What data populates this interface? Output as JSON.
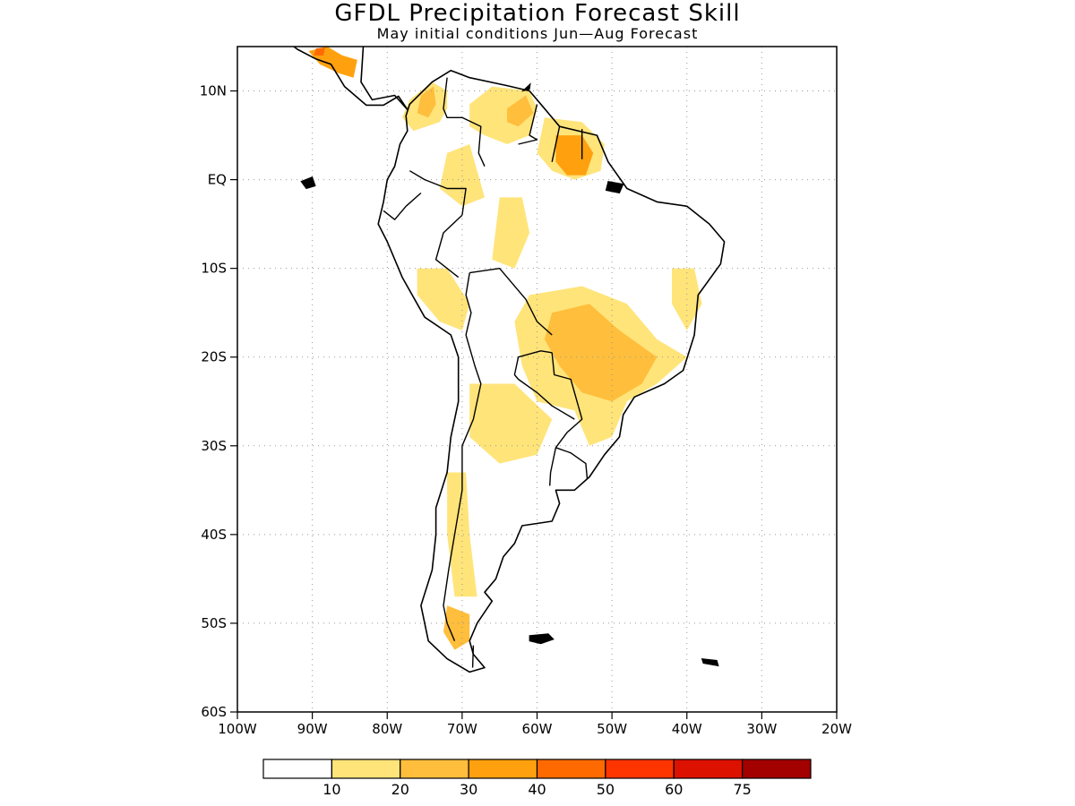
{
  "title": "GFDL Precipitation Forecast Skill",
  "subtitle": "May initial conditions  Jun—Aug Forecast",
  "map": {
    "lon_range": [
      -100,
      -20
    ],
    "lat_range": [
      -60,
      15
    ],
    "lat_ticks": [
      {
        "value": 10,
        "label": "10N"
      },
      {
        "value": 0,
        "label": "EQ"
      },
      {
        "value": -10,
        "label": "10S"
      },
      {
        "value": -20,
        "label": "20S"
      },
      {
        "value": -30,
        "label": "30S"
      },
      {
        "value": -40,
        "label": "40S"
      },
      {
        "value": -50,
        "label": "50S"
      },
      {
        "value": -60,
        "label": "60S"
      }
    ],
    "lon_ticks": [
      {
        "value": -100,
        "label": "100W"
      },
      {
        "value": -90,
        "label": "90W"
      },
      {
        "value": -80,
        "label": "80W"
      },
      {
        "value": -70,
        "label": "70W"
      },
      {
        "value": -60,
        "label": "60W"
      },
      {
        "value": -50,
        "label": "50W"
      },
      {
        "value": -40,
        "label": "40W"
      },
      {
        "value": -30,
        "label": "30W"
      },
      {
        "value": -20,
        "label": "20W"
      }
    ],
    "grid": "dotted"
  },
  "colorbar": {
    "colors": [
      "#ffffff",
      "#ffe47a",
      "#ffbe3c",
      "#ffa10e",
      "#ff6a00",
      "#ff3500",
      "#dc1100",
      "#a30000"
    ],
    "labels": [
      "10",
      "20",
      "30",
      "40",
      "50",
      "60",
      "75"
    ]
  },
  "skill_regions": [
    {
      "name": "central-america",
      "level": 3,
      "lonlat": [
        [
          -90.5,
          14.5
        ],
        [
          -88,
          15
        ],
        [
          -86,
          14
        ],
        [
          -84,
          13.5
        ],
        [
          -84.5,
          11.5
        ],
        [
          -86.5,
          12
        ],
        [
          -89,
          13
        ]
      ]
    },
    {
      "name": "central-america-core",
      "level": 4,
      "lonlat": [
        [
          -89.5,
          14.8
        ],
        [
          -88.3,
          14.9
        ],
        [
          -88.5,
          14
        ],
        [
          -89.8,
          14
        ]
      ]
    },
    {
      "name": "colombia-north",
      "level": 1,
      "lonlat": [
        [
          -77,
          9
        ],
        [
          -74,
          11
        ],
        [
          -72,
          10
        ],
        [
          -72,
          8
        ],
        [
          -73,
          6.5
        ],
        [
          -76.5,
          5.5
        ],
        [
          -78,
          7
        ]
      ]
    },
    {
      "name": "colombia-north-core",
      "level": 2,
      "lonlat": [
        [
          -75.5,
          9.5
        ],
        [
          -73.8,
          10.5
        ],
        [
          -73.5,
          8.5
        ],
        [
          -74.5,
          7
        ],
        [
          -76,
          7.5
        ]
      ]
    },
    {
      "name": "venezuela",
      "level": 1,
      "lonlat": [
        [
          -69,
          8.5
        ],
        [
          -66,
          10.5
        ],
        [
          -61,
          10
        ],
        [
          -60,
          8
        ],
        [
          -61,
          5
        ],
        [
          -64,
          4
        ],
        [
          -67,
          5
        ],
        [
          -69,
          6
        ]
      ]
    },
    {
      "name": "venezuela-core",
      "level": 2,
      "lonlat": [
        [
          -64,
          8
        ],
        [
          -61.5,
          9.5
        ],
        [
          -60.5,
          7.5
        ],
        [
          -62.5,
          6
        ],
        [
          -64,
          6.5
        ]
      ]
    },
    {
      "name": "guianas",
      "level": 1,
      "lonlat": [
        [
          -59,
          7
        ],
        [
          -54,
          6.5
        ],
        [
          -51,
          4
        ],
        [
          -51.5,
          1
        ],
        [
          -55,
          0
        ],
        [
          -58,
          1
        ],
        [
          -60,
          3
        ]
      ]
    },
    {
      "name": "guianas-core",
      "level": 3,
      "lonlat": [
        [
          -57.5,
          5
        ],
        [
          -54,
          5
        ],
        [
          -52.5,
          3
        ],
        [
          -53.5,
          0.5
        ],
        [
          -56,
          0.5
        ],
        [
          -57.5,
          2
        ]
      ]
    },
    {
      "name": "western-amazon",
      "level": 1,
      "lonlat": [
        [
          -72,
          3
        ],
        [
          -69,
          4
        ],
        [
          -68,
          1
        ],
        [
          -67,
          -2
        ],
        [
          -70,
          -3
        ],
        [
          -73,
          -1
        ]
      ]
    },
    {
      "name": "central-amazon",
      "level": 1,
      "lonlat": [
        [
          -65,
          -2
        ],
        [
          -62,
          -2
        ],
        [
          -61,
          -6
        ],
        [
          -63,
          -10
        ],
        [
          -66,
          -9
        ]
      ]
    },
    {
      "name": "peru-bolivia",
      "level": 1,
      "lonlat": [
        [
          -76,
          -10
        ],
        [
          -72,
          -10
        ],
        [
          -69,
          -14
        ],
        [
          -70,
          -17
        ],
        [
          -73,
          -16
        ],
        [
          -76,
          -13
        ]
      ]
    },
    {
      "name": "central-brazil",
      "level": 1,
      "lonlat": [
        [
          -61,
          -13
        ],
        [
          -54,
          -12
        ],
        [
          -48,
          -14
        ],
        [
          -44,
          -18
        ],
        [
          -40,
          -20
        ],
        [
          -44,
          -23
        ],
        [
          -48,
          -25
        ],
        [
          -50,
          -29
        ],
        [
          -53,
          -30
        ],
        [
          -55,
          -26
        ],
        [
          -60,
          -25
        ],
        [
          -62,
          -21
        ],
        [
          -63,
          -16
        ]
      ]
    },
    {
      "name": "central-brazil-core",
      "level": 2,
      "lonlat": [
        [
          -58,
          -15
        ],
        [
          -53,
          -14
        ],
        [
          -49,
          -17
        ],
        [
          -44,
          -20
        ],
        [
          -46,
          -23
        ],
        [
          -50,
          -25
        ],
        [
          -54,
          -24
        ],
        [
          -57,
          -21
        ],
        [
          -59,
          -18
        ]
      ]
    },
    {
      "name": "chaco",
      "level": 1,
      "lonlat": [
        [
          -69,
          -23
        ],
        [
          -63,
          -23
        ],
        [
          -58,
          -27
        ],
        [
          -60,
          -31
        ],
        [
          -65,
          -32
        ],
        [
          -69,
          -29
        ]
      ]
    },
    {
      "name": "east-coast",
      "level": 1,
      "lonlat": [
        [
          -42,
          -10
        ],
        [
          -39,
          -10
        ],
        [
          -38,
          -14
        ],
        [
          -40,
          -17
        ],
        [
          -42,
          -14
        ]
      ]
    },
    {
      "name": "chile-andes",
      "level": 1,
      "lonlat": [
        [
          -72,
          -33
        ],
        [
          -69.5,
          -33
        ],
        [
          -69,
          -40
        ],
        [
          -68,
          -47
        ],
        [
          -71,
          -47
        ],
        [
          -72,
          -40
        ]
      ]
    },
    {
      "name": "patagonia",
      "level": 2,
      "lonlat": [
        [
          -72,
          -48
        ],
        [
          -69,
          -49
        ],
        [
          -69,
          -52
        ],
        [
          -71,
          -53
        ],
        [
          -72.5,
          -51
        ]
      ]
    }
  ],
  "land": [
    {
      "name": "south-america",
      "lonlat": [
        [
          -77,
          8.5
        ],
        [
          -74,
          11
        ],
        [
          -71.5,
          12.3
        ],
        [
          -69,
          11.5
        ],
        [
          -64,
          10.6
        ],
        [
          -61,
          10
        ],
        [
          -59,
          8
        ],
        [
          -57,
          6
        ],
        [
          -52,
          5
        ],
        [
          -50.5,
          2
        ],
        [
          -48,
          -1
        ],
        [
          -44,
          -2.5
        ],
        [
          -40,
          -3
        ],
        [
          -37,
          -5
        ],
        [
          -35,
          -7
        ],
        [
          -35.5,
          -9.5
        ],
        [
          -38.5,
          -13
        ],
        [
          -39,
          -17.5
        ],
        [
          -40.5,
          -21.5
        ],
        [
          -43,
          -23
        ],
        [
          -47,
          -24.5
        ],
        [
          -48.5,
          -26.5
        ],
        [
          -49,
          -29
        ],
        [
          -51,
          -31
        ],
        [
          -53,
          -33.5
        ],
        [
          -55,
          -35
        ],
        [
          -57.5,
          -35
        ],
        [
          -57,
          -36.5
        ],
        [
          -58,
          -38.5
        ],
        [
          -62,
          -39
        ],
        [
          -63,
          -41
        ],
        [
          -64.5,
          -42.5
        ],
        [
          -65.5,
          -45
        ],
        [
          -67,
          -46.5
        ],
        [
          -66,
          -47.5
        ],
        [
          -68,
          -50
        ],
        [
          -69,
          -52
        ],
        [
          -68.5,
          -53.5
        ],
        [
          -67,
          -55
        ],
        [
          -69,
          -55.5
        ],
        [
          -72,
          -54
        ],
        [
          -74.5,
          -52
        ],
        [
          -75.5,
          -48
        ],
        [
          -74,
          -44
        ],
        [
          -73.5,
          -40
        ],
        [
          -73.5,
          -37
        ],
        [
          -72,
          -33
        ],
        [
          -71.5,
          -29
        ],
        [
          -70.5,
          -25
        ],
        [
          -70.5,
          -20
        ],
        [
          -71.5,
          -17.5
        ],
        [
          -75,
          -15.5
        ],
        [
          -78,
          -11
        ],
        [
          -80,
          -7
        ],
        [
          -81.2,
          -5
        ],
        [
          -80.5,
          -2.5
        ],
        [
          -80,
          0
        ],
        [
          -79,
          1.5
        ],
        [
          -78.3,
          4
        ],
        [
          -77.3,
          5.5
        ],
        [
          -77.5,
          7.2
        ]
      ]
    },
    {
      "name": "central-america",
      "lonlat": [
        [
          -77.3,
          7.9
        ],
        [
          -78.5,
          9.4
        ],
        [
          -80.5,
          8.4
        ],
        [
          -82.8,
          8.4
        ],
        [
          -85.7,
          10.5
        ],
        [
          -87.5,
          13
        ],
        [
          -89.5,
          13.6
        ],
        [
          -92,
          14.7
        ],
        [
          -94,
          16
        ],
        [
          -97,
          16.5
        ],
        [
          -97,
          17.8
        ],
        [
          -92,
          18.6
        ],
        [
          -90.5,
          21
        ],
        [
          -87.3,
          21.5
        ],
        [
          -87.8,
          18.5
        ],
        [
          -88.5,
          16
        ],
        [
          -86,
          15.8
        ],
        [
          -83.2,
          15
        ],
        [
          -83.5,
          11
        ],
        [
          -82,
          9
        ],
        [
          -79,
          9.5
        ]
      ]
    }
  ],
  "borders": [
    {
      "name": "colombia-venezuela",
      "lonlat": [
        [
          -72,
          11.5
        ],
        [
          -72.5,
          8
        ],
        [
          -72,
          7
        ],
        [
          -70,
          7
        ],
        [
          -67.5,
          6
        ],
        [
          -67.8,
          3
        ],
        [
          -67,
          1.5
        ]
      ]
    },
    {
      "name": "colombia-south",
      "lonlat": [
        [
          -77,
          1
        ],
        [
          -75,
          0
        ],
        [
          -72,
          -1
        ],
        [
          -69.5,
          -1
        ],
        [
          -70,
          -4
        ]
      ]
    },
    {
      "name": "venezuela-guyana",
      "lonlat": [
        [
          -60,
          8.5
        ],
        [
          -61,
          5
        ],
        [
          -60,
          4.5
        ],
        [
          -62.5,
          4
        ]
      ]
    },
    {
      "name": "guyana-suriname",
      "lonlat": [
        [
          -57,
          6
        ],
        [
          -58,
          2
        ]
      ]
    },
    {
      "name": "suriname-guiana",
      "lonlat": [
        [
          -54,
          5.7
        ],
        [
          -54,
          2.3
        ]
      ]
    },
    {
      "name": "ecuador-peru",
      "lonlat": [
        [
          -80.5,
          -3.5
        ],
        [
          -79,
          -4.5
        ],
        [
          -77.5,
          -3
        ],
        [
          -75.5,
          -1.5
        ]
      ]
    },
    {
      "name": "peru-brazil",
      "lonlat": [
        [
          -70,
          -4
        ],
        [
          -72.5,
          -6
        ],
        [
          -73.5,
          -9
        ],
        [
          -70.5,
          -11
        ]
      ]
    },
    {
      "name": "peru-bolivia",
      "lonlat": [
        [
          -69,
          -10.5
        ],
        [
          -69.5,
          -13
        ],
        [
          -68.8,
          -15
        ],
        [
          -69.5,
          -17.5
        ]
      ]
    },
    {
      "name": "chile-bolivia-argentina",
      "lonlat": [
        [
          -69.5,
          -17.5
        ],
        [
          -68.3,
          -21
        ],
        [
          -67.5,
          -23
        ],
        [
          -68.5,
          -27
        ],
        [
          -70,
          -30
        ],
        [
          -70,
          -35
        ],
        [
          -71,
          -40
        ],
        [
          -71.8,
          -44
        ],
        [
          -72.5,
          -48
        ],
        [
          -72,
          -50
        ],
        [
          -71,
          -52
        ]
      ]
    },
    {
      "name": "bolivia-brazil",
      "lonlat": [
        [
          -69,
          -10.5
        ],
        [
          -65,
          -10
        ],
        [
          -61.5,
          -13.5
        ],
        [
          -60,
          -16
        ],
        [
          -58,
          -17.5
        ]
      ]
    },
    {
      "name": "bolivia-paraguay",
      "lonlat": [
        [
          -58,
          -19.5
        ],
        [
          -59.5,
          -19.3
        ],
        [
          -62.5,
          -20
        ],
        [
          -63,
          -22
        ],
        [
          -62.5,
          -22.5
        ]
      ]
    },
    {
      "name": "argentina-paraguay",
      "lonlat": [
        [
          -62.5,
          -22.5
        ],
        [
          -60,
          -24
        ],
        [
          -58,
          -25.5
        ],
        [
          -55,
          -27
        ]
      ]
    },
    {
      "name": "paraguay-brazil",
      "lonlat": [
        [
          -58,
          -19.5
        ],
        [
          -57.7,
          -22
        ],
        [
          -55.5,
          -22.5
        ],
        [
          -54.5,
          -25.5
        ]
      ]
    },
    {
      "name": "brazil-argentina",
      "lonlat": [
        [
          -54.5,
          -25.5
        ],
        [
          -54,
          -27
        ],
        [
          -56,
          -28.5
        ],
        [
          -57.5,
          -30.2
        ]
      ]
    },
    {
      "name": "uruguay-brazil",
      "lonlat": [
        [
          -57.5,
          -30.2
        ],
        [
          -55.5,
          -30.8
        ],
        [
          -53.5,
          -32
        ],
        [
          -53.3,
          -33.7
        ]
      ]
    },
    {
      "name": "uruguay-argentina",
      "lonlat": [
        [
          -57.5,
          -30.2
        ],
        [
          -58.2,
          -33
        ],
        [
          -58.3,
          -34.5
        ]
      ]
    },
    {
      "name": "tierra-del-fuego",
      "lonlat": [
        [
          -68.5,
          -52.5
        ],
        [
          -68.6,
          -55
        ]
      ]
    }
  ],
  "islands": [
    {
      "name": "falklands",
      "lonlat": [
        [
          -61,
          -51.4
        ],
        [
          -58.5,
          -51.2
        ],
        [
          -57.8,
          -51.8
        ],
        [
          -59.5,
          -52.3
        ],
        [
          -61,
          -52
        ]
      ]
    },
    {
      "name": "galapagos",
      "lonlat": [
        [
          -91.5,
          -0.2
        ],
        [
          -90,
          0.3
        ],
        [
          -89.6,
          -0.7
        ],
        [
          -90.8,
          -1
        ]
      ]
    },
    {
      "name": "south-georgia",
      "lonlat": [
        [
          -38,
          -54
        ],
        [
          -36,
          -54.2
        ],
        [
          -35.8,
          -54.8
        ],
        [
          -37.8,
          -54.5
        ]
      ]
    },
    {
      "name": "trinidad",
      "lonlat": [
        [
          -61.9,
          10
        ],
        [
          -60.9,
          10.8
        ],
        [
          -61,
          10.2
        ]
      ]
    },
    {
      "name": "marajo",
      "lonlat": [
        [
          -50.5,
          -0.2
        ],
        [
          -48.5,
          -0.5
        ],
        [
          -49,
          -1.5
        ],
        [
          -50.8,
          -1.2
        ]
      ]
    }
  ]
}
